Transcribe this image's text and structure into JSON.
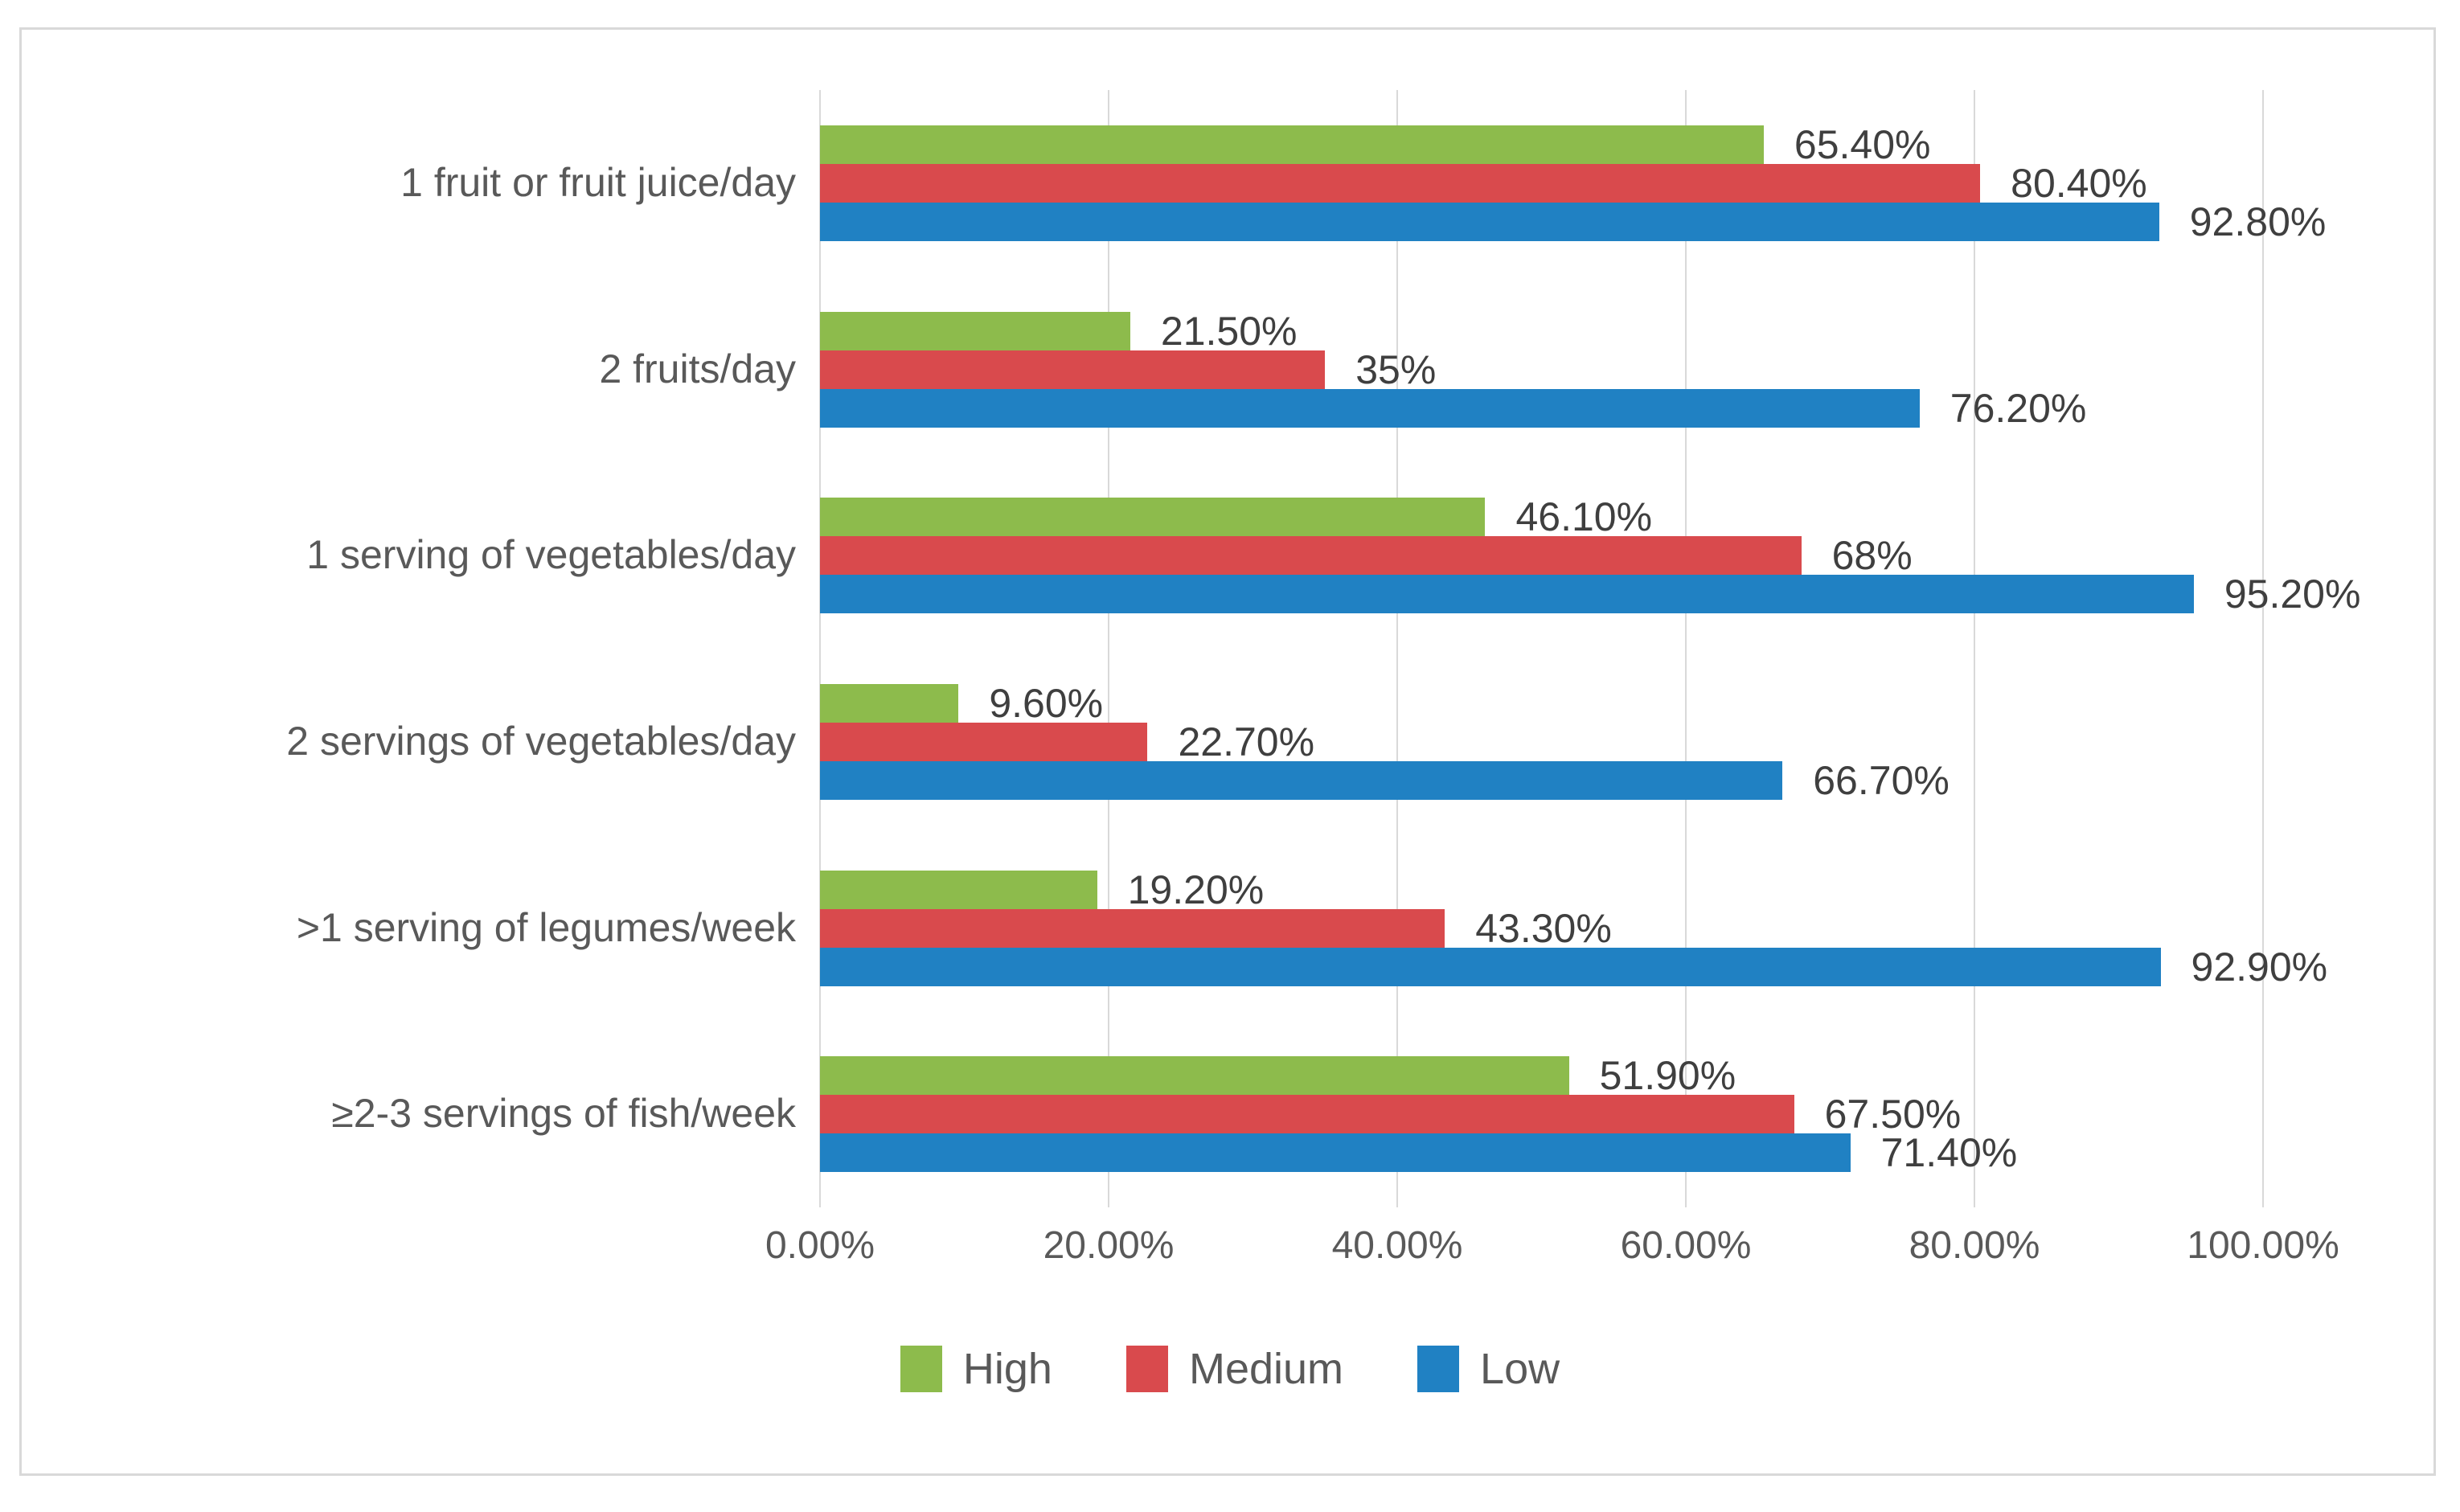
{
  "chart_data": {
    "type": "bar",
    "orientation": "horizontal",
    "categories": [
      "1 fruit or fruit juice/day",
      "2 fruits/day",
      "1 serving of vegetables/day",
      "2 servings of vegetables/day",
      ">1 serving of legumes/week",
      "≥2-3 servings of fish/week"
    ],
    "series": [
      {
        "name": "High",
        "color": "#8dbb4c",
        "values": [
          65.4,
          21.5,
          46.1,
          9.6,
          19.2,
          51.9
        ],
        "labels": [
          "65.40%",
          "21.50%",
          "46.10%",
          "9.60%",
          "19.20%",
          "51.90%"
        ]
      },
      {
        "name": "Medium",
        "color": "#d94a4d",
        "values": [
          80.4,
          35,
          68,
          22.7,
          43.3,
          67.5
        ],
        "labels": [
          "80.40%",
          "35%",
          "68%",
          "22.70%",
          "43.30%",
          "67.50%"
        ]
      },
      {
        "name": "Low",
        "color": "#2081c3",
        "values": [
          92.8,
          76.2,
          95.2,
          66.7,
          92.9,
          71.4
        ],
        "labels": [
          "92.80%",
          "76.20%",
          "95.20%",
          "66.70%",
          "92.90%",
          "71.40%"
        ]
      }
    ],
    "xlim": [
      0,
      100
    ],
    "x_ticks": [
      "0.00%",
      "20.00%",
      "40.00%",
      "60.00%",
      "80.00%",
      "100.00%"
    ],
    "grid": true,
    "legend_position": "bottom"
  },
  "colors": {
    "grid": "#d9d9d9",
    "frame_border": "#d9d9d9",
    "data_label_text": "#3f3f3f",
    "axis_text": "#595959",
    "background": "#ffffff"
  }
}
